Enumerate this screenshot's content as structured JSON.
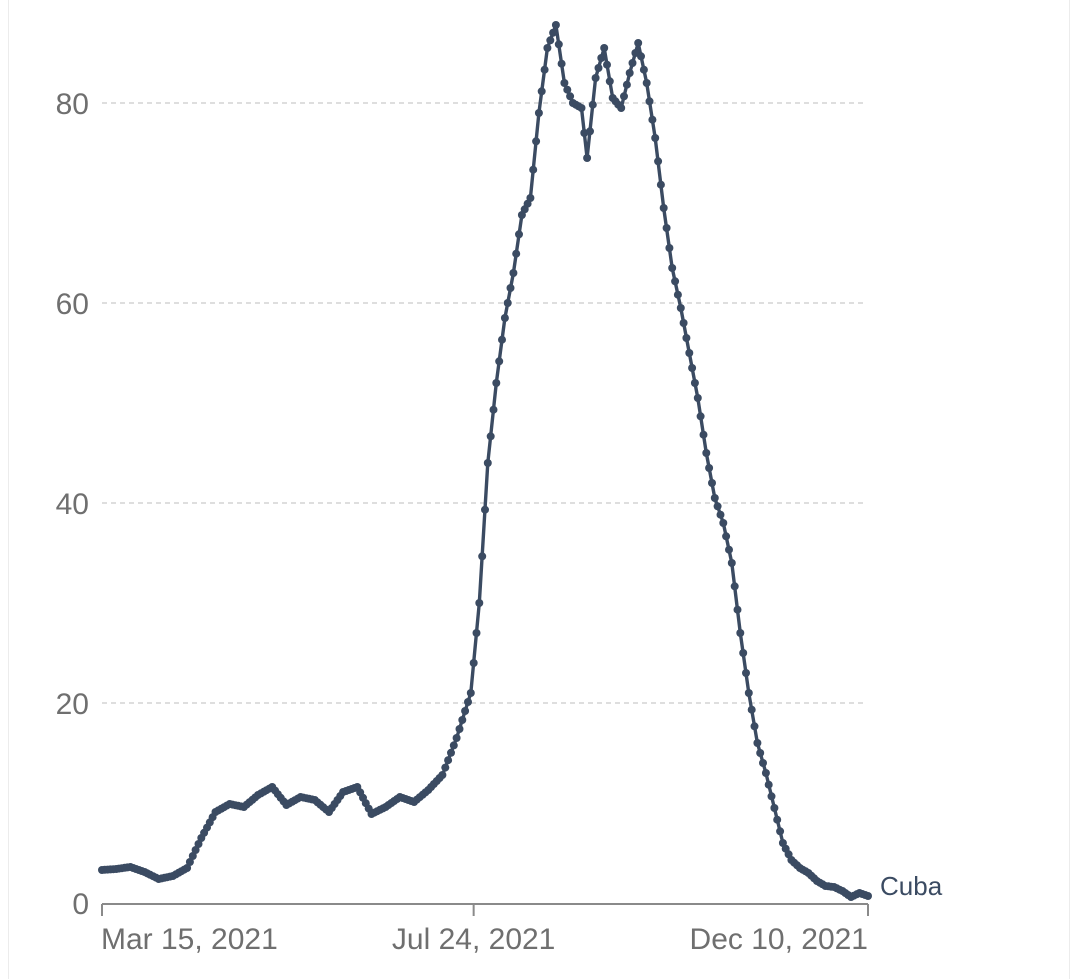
{
  "chart_data": {
    "type": "line",
    "title": "",
    "xlabel": "",
    "ylabel": "",
    "x_range": [
      "2021-03-15",
      "2021-12-10"
    ],
    "ylim": [
      0,
      88
    ],
    "y_ticks": [
      0,
      20,
      40,
      60,
      80
    ],
    "y_tick_labels": [
      "0",
      "20",
      "40",
      "60",
      "80"
    ],
    "x_ticks": [
      {
        "date": "2021-03-15",
        "label": "Mar 15, 2021"
      },
      {
        "date": "2021-07-24",
        "label": "Jul 24, 2021"
      },
      {
        "date": "2021-12-10",
        "label": "Dec 10, 2021"
      }
    ],
    "grid": {
      "horizontal": true,
      "style": "dashed"
    },
    "line_color": "#3b4b62",
    "series": [
      {
        "name": "Cuba",
        "points": [
          [
            "2021-03-15",
            3.3
          ],
          [
            "2021-03-20",
            3.4
          ],
          [
            "2021-03-25",
            3.6
          ],
          [
            "2021-03-30",
            3.1
          ],
          [
            "2021-04-04",
            2.4
          ],
          [
            "2021-04-09",
            2.7
          ],
          [
            "2021-04-14",
            3.5
          ],
          [
            "2021-04-19",
            6.5
          ],
          [
            "2021-04-24",
            9.1
          ],
          [
            "2021-04-29",
            9.9
          ],
          [
            "2021-05-04",
            9.6
          ],
          [
            "2021-05-09",
            10.8
          ],
          [
            "2021-05-14",
            11.6
          ],
          [
            "2021-05-19",
            9.8
          ],
          [
            "2021-05-24",
            10.6
          ],
          [
            "2021-05-29",
            10.3
          ],
          [
            "2021-06-03",
            9.1
          ],
          [
            "2021-06-08",
            11.1
          ],
          [
            "2021-06-13",
            11.6
          ],
          [
            "2021-06-18",
            8.9
          ],
          [
            "2021-06-23",
            9.6
          ],
          [
            "2021-06-28",
            10.6
          ],
          [
            "2021-07-03",
            10.1
          ],
          [
            "2021-07-08",
            11.3
          ],
          [
            "2021-07-13",
            12.8
          ],
          [
            "2021-07-18",
            16.5
          ],
          [
            "2021-07-23",
            21.0
          ],
          [
            "2021-07-26",
            30.0
          ],
          [
            "2021-07-29",
            44.0
          ],
          [
            "2021-08-01",
            52.0
          ],
          [
            "2021-08-04",
            58.5
          ],
          [
            "2021-08-07",
            63.0
          ],
          [
            "2021-08-10",
            68.8
          ],
          [
            "2021-08-13",
            70.5
          ],
          [
            "2021-08-16",
            79.0
          ],
          [
            "2021-08-19",
            85.5
          ],
          [
            "2021-08-22",
            87.8
          ],
          [
            "2021-08-25",
            82.0
          ],
          [
            "2021-08-28",
            80.0
          ],
          [
            "2021-08-31",
            79.5
          ],
          [
            "2021-09-02",
            74.5
          ],
          [
            "2021-09-05",
            82.5
          ],
          [
            "2021-09-08",
            85.5
          ],
          [
            "2021-09-11",
            80.5
          ],
          [
            "2021-09-14",
            79.5
          ],
          [
            "2021-09-17",
            83.0
          ],
          [
            "2021-09-20",
            86.0
          ],
          [
            "2021-09-23",
            82.0
          ],
          [
            "2021-09-26",
            76.5
          ],
          [
            "2021-09-29",
            69.5
          ],
          [
            "2021-10-02",
            63.5
          ],
          [
            "2021-10-05",
            59.5
          ],
          [
            "2021-10-08",
            55.0
          ],
          [
            "2021-10-11",
            50.5
          ],
          [
            "2021-10-14",
            45.0
          ],
          [
            "2021-10-17",
            40.5
          ],
          [
            "2021-10-20",
            38.0
          ],
          [
            "2021-10-23",
            34.0
          ],
          [
            "2021-10-26",
            27.0
          ],
          [
            "2021-10-29",
            21.0
          ],
          [
            "2021-11-01",
            16.0
          ],
          [
            "2021-11-04",
            13.0
          ],
          [
            "2021-11-07",
            9.5
          ],
          [
            "2021-11-10",
            6.0
          ],
          [
            "2021-11-13",
            4.3
          ],
          [
            "2021-11-16",
            3.5
          ],
          [
            "2021-11-19",
            3.0
          ],
          [
            "2021-11-22",
            2.2
          ],
          [
            "2021-11-25",
            1.7
          ],
          [
            "2021-11-28",
            1.6
          ],
          [
            "2021-12-01",
            1.2
          ],
          [
            "2021-12-04",
            0.6
          ],
          [
            "2021-12-07",
            1.0
          ],
          [
            "2021-12-10",
            0.7
          ]
        ]
      }
    ]
  }
}
